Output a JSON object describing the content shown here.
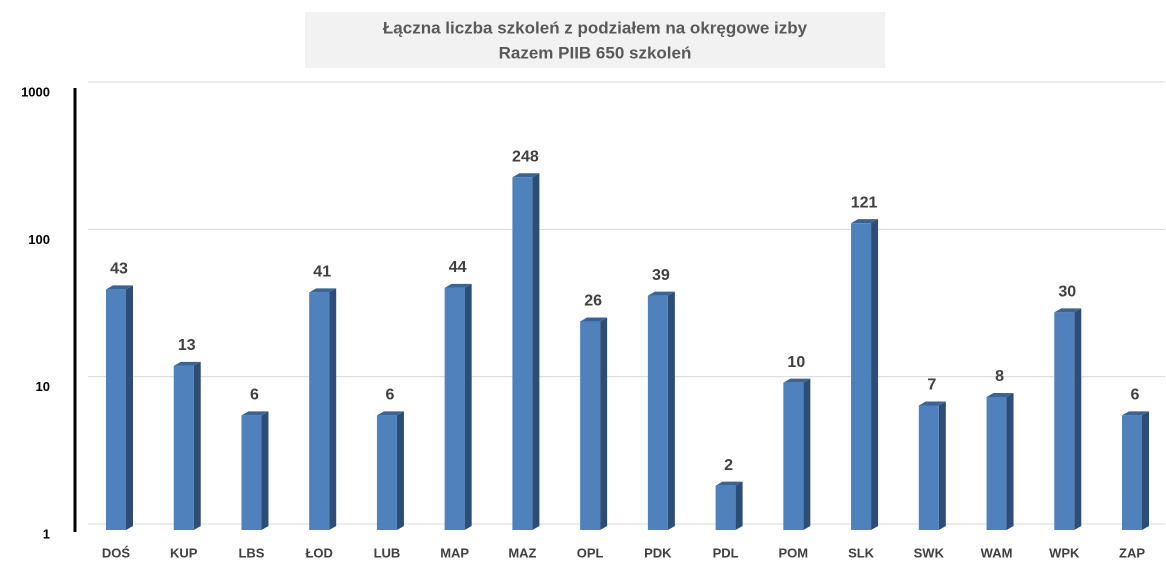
{
  "chart_data": {
    "type": "bar",
    "title": "Łączna liczba szkoleń z podziałem na okręgowe izby",
    "subtitle": "Razem PIIB 650 szkoleń",
    "categories": [
      "DOŚ",
      "KUP",
      "LBS",
      "ŁOD",
      "LUB",
      "MAP",
      "MAZ",
      "OPL",
      "PDK",
      "PDL",
      "POM",
      "SLK",
      "SWK",
      "WAM",
      "WPK",
      "ZAP"
    ],
    "values": [
      43,
      13,
      6,
      41,
      6,
      44,
      248,
      26,
      39,
      2,
      10,
      121,
      7,
      8,
      30,
      6
    ],
    "color": "#4f81bd",
    "ylim": [
      1,
      1000
    ],
    "yticks": [
      1,
      10,
      100,
      1000
    ],
    "log": true,
    "grid": true
  }
}
